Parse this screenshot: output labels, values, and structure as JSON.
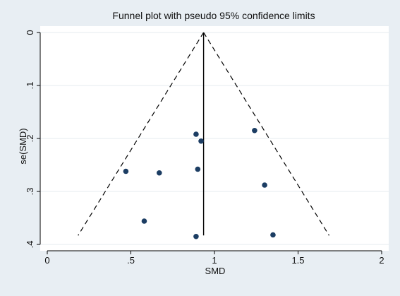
{
  "chart_data": {
    "type": "scatter",
    "title": "Funnel plot with pseudo 95% confidence limits",
    "xlabel": "SMD",
    "ylabel": "se(SMD)",
    "xlim": [
      0,
      2
    ],
    "ylim": [
      0,
      0.4
    ],
    "y_reversed": true,
    "grid": "horizontal",
    "x_ticks": [
      0,
      0.5,
      1,
      1.5,
      2
    ],
    "x_tick_labels": [
      "0",
      ".5",
      "1",
      "1.5",
      "2"
    ],
    "y_ticks": [
      0,
      0.1,
      0.2,
      0.3,
      0.4
    ],
    "y_tick_labels": [
      "0",
      ".1",
      ".2",
      ".3",
      ".4"
    ],
    "pooled_estimate": 0.935,
    "funnel_se_max": 0.383,
    "points": [
      {
        "x": 1.24,
        "y": 0.185
      },
      {
        "x": 0.89,
        "y": 0.192
      },
      {
        "x": 0.92,
        "y": 0.205
      },
      {
        "x": 0.47,
        "y": 0.262
      },
      {
        "x": 0.67,
        "y": 0.265
      },
      {
        "x": 0.9,
        "y": 0.258
      },
      {
        "x": 1.3,
        "y": 0.288
      },
      {
        "x": 0.58,
        "y": 0.356
      },
      {
        "x": 0.89,
        "y": 0.385
      },
      {
        "x": 1.35,
        "y": 0.382
      }
    ],
    "colors": {
      "background": "#e8eef3",
      "plot_background": "#ffffff",
      "grid": "#e6ebef",
      "point": "#1c3d63",
      "lines": "#000000"
    }
  }
}
